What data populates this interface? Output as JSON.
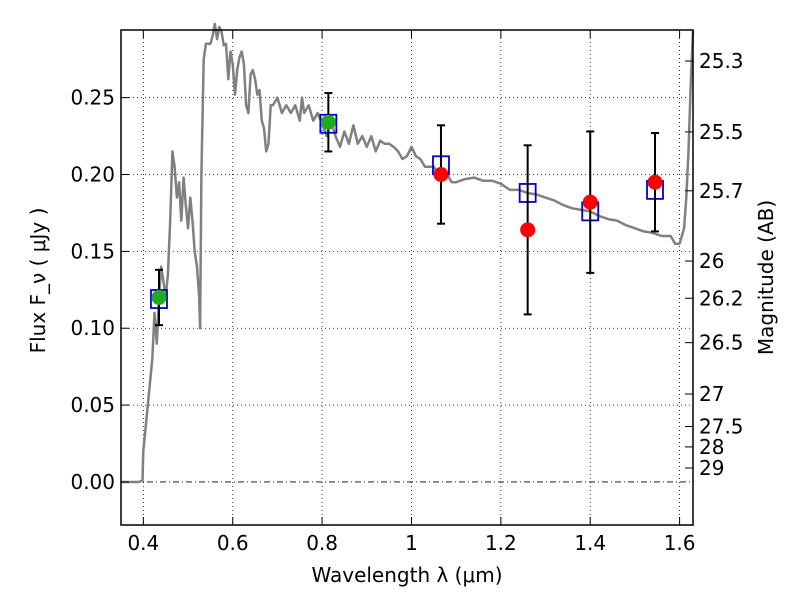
{
  "chart_data": {
    "type": "scatter",
    "xlabel": "Wavelength  λ (μm)",
    "ylabel": "Flux  F_ν  ( μJy )",
    "ylabel_right": "Magnitude (AB)",
    "xlim": [
      0.35,
      1.63
    ],
    "ylim": [
      -0.028,
      0.294
    ],
    "grid": true,
    "x_ticks": [
      0.4,
      0.6,
      0.8,
      1.0,
      1.2,
      1.4,
      1.6
    ],
    "x_tick_labels": [
      "0.4",
      "0.6",
      "0.8",
      "1",
      "1.2",
      "1.4",
      "1.6"
    ],
    "y_ticks": [
      0.0,
      0.05,
      0.1,
      0.15,
      0.2,
      0.25
    ],
    "y_tick_labels": [
      "0.00",
      "0.05",
      "0.10",
      "0.15",
      "0.20",
      "0.25"
    ],
    "right_ticks": [
      {
        "label": "25.3",
        "flux": 0.2738
      },
      {
        "label": "25.5",
        "flux": 0.2277
      },
      {
        "label": "25.7",
        "flux": 0.1894
      },
      {
        "label": "26",
        "flux": 0.1437
      },
      {
        "label": "26.2",
        "flux": 0.1195
      },
      {
        "label": "26.5",
        "flux": 0.0906
      },
      {
        "label": "27",
        "flux": 0.0572
      },
      {
        "label": "27.5",
        "flux": 0.0361
      },
      {
        "label": "28",
        "flux": 0.0228
      },
      {
        "label": "29",
        "flux": 0.0091
      }
    ],
    "series": [
      {
        "kind": "sed-line",
        "color": "#808080",
        "points": [
          [
            0.35,
            0.0
          ],
          [
            0.39,
            0.0
          ],
          [
            0.398,
            0.001
          ],
          [
            0.4,
            0.02
          ],
          [
            0.41,
            0.05
          ],
          [
            0.42,
            0.08
          ],
          [
            0.425,
            0.11
          ],
          [
            0.43,
            0.09
          ],
          [
            0.435,
            0.12
          ],
          [
            0.44,
            0.14
          ],
          [
            0.445,
            0.13
          ],
          [
            0.45,
            0.12
          ],
          [
            0.455,
            0.135
          ],
          [
            0.46,
            0.17
          ],
          [
            0.465,
            0.215
          ],
          [
            0.47,
            0.205
          ],
          [
            0.475,
            0.185
          ],
          [
            0.48,
            0.195
          ],
          [
            0.485,
            0.17
          ],
          [
            0.49,
            0.198
          ],
          [
            0.495,
            0.18
          ],
          [
            0.5,
            0.165
          ],
          [
            0.505,
            0.185
          ],
          [
            0.51,
            0.17
          ],
          [
            0.515,
            0.15
          ],
          [
            0.52,
            0.14
          ],
          [
            0.525,
            0.12
          ],
          [
            0.527,
            0.1
          ],
          [
            0.53,
            0.2
          ],
          [
            0.535,
            0.275
          ],
          [
            0.54,
            0.285
          ],
          [
            0.55,
            0.285
          ],
          [
            0.555,
            0.29
          ],
          [
            0.56,
            0.298
          ],
          [
            0.565,
            0.288
          ],
          [
            0.57,
            0.296
          ],
          [
            0.575,
            0.293
          ],
          [
            0.58,
            0.284
          ],
          [
            0.585,
            0.285
          ],
          [
            0.59,
            0.262
          ],
          [
            0.595,
            0.28
          ],
          [
            0.6,
            0.272
          ],
          [
            0.605,
            0.252
          ],
          [
            0.61,
            0.268
          ],
          [
            0.615,
            0.276
          ],
          [
            0.62,
            0.28
          ],
          [
            0.625,
            0.272
          ],
          [
            0.63,
            0.245
          ],
          [
            0.635,
            0.24
          ],
          [
            0.64,
            0.265
          ],
          [
            0.645,
            0.268
          ],
          [
            0.65,
            0.262
          ],
          [
            0.655,
            0.252
          ],
          [
            0.66,
            0.255
          ],
          [
            0.665,
            0.235
          ],
          [
            0.67,
            0.23
          ],
          [
            0.675,
            0.215
          ],
          [
            0.68,
            0.22
          ],
          [
            0.685,
            0.245
          ],
          [
            0.69,
            0.245
          ],
          [
            0.7,
            0.25
          ],
          [
            0.71,
            0.24
          ],
          [
            0.72,
            0.245
          ],
          [
            0.73,
            0.24
          ],
          [
            0.74,
            0.245
          ],
          [
            0.75,
            0.235
          ],
          [
            0.755,
            0.25
          ],
          [
            0.76,
            0.24
          ],
          [
            0.77,
            0.245
          ],
          [
            0.78,
            0.235
          ],
          [
            0.79,
            0.24
          ],
          [
            0.8,
            0.233
          ],
          [
            0.81,
            0.225
          ],
          [
            0.82,
            0.235
          ],
          [
            0.83,
            0.225
          ],
          [
            0.84,
            0.218
          ],
          [
            0.85,
            0.228
          ],
          [
            0.86,
            0.22
          ],
          [
            0.87,
            0.232
          ],
          [
            0.88,
            0.22
          ],
          [
            0.89,
            0.225
          ],
          [
            0.9,
            0.218
          ],
          [
            0.91,
            0.225
          ],
          [
            0.92,
            0.215
          ],
          [
            0.93,
            0.222
          ],
          [
            0.94,
            0.22
          ],
          [
            0.95,
            0.22
          ],
          [
            0.96,
            0.218
          ],
          [
            0.97,
            0.215
          ],
          [
            0.98,
            0.21
          ],
          [
            0.99,
            0.212
          ],
          [
            1.0,
            0.218
          ],
          [
            1.01,
            0.212
          ],
          [
            1.02,
            0.21
          ],
          [
            1.03,
            0.205
          ],
          [
            1.04,
            0.205
          ],
          [
            1.05,
            0.205
          ],
          [
            1.06,
            0.2
          ],
          [
            1.07,
            0.2
          ],
          [
            1.08,
            0.2
          ],
          [
            1.09,
            0.195
          ],
          [
            1.1,
            0.195
          ],
          [
            1.12,
            0.197
          ],
          [
            1.14,
            0.198
          ],
          [
            1.16,
            0.196
          ],
          [
            1.18,
            0.196
          ],
          [
            1.2,
            0.194
          ],
          [
            1.22,
            0.19
          ],
          [
            1.24,
            0.19
          ],
          [
            1.26,
            0.188
          ],
          [
            1.28,
            0.187
          ],
          [
            1.3,
            0.185
          ],
          [
            1.32,
            0.183
          ],
          [
            1.34,
            0.18
          ],
          [
            1.36,
            0.178
          ],
          [
            1.38,
            0.177
          ],
          [
            1.4,
            0.176
          ],
          [
            1.42,
            0.173
          ],
          [
            1.44,
            0.171
          ],
          [
            1.46,
            0.17
          ],
          [
            1.48,
            0.167
          ],
          [
            1.5,
            0.165
          ],
          [
            1.52,
            0.163
          ],
          [
            1.54,
            0.162
          ],
          [
            1.56,
            0.16
          ],
          [
            1.58,
            0.16
          ],
          [
            1.59,
            0.155
          ],
          [
            1.6,
            0.155
          ],
          [
            1.61,
            0.165
          ],
          [
            1.615,
            0.185
          ],
          [
            1.62,
            0.215
          ],
          [
            1.625,
            0.26
          ],
          [
            1.63,
            0.294
          ]
        ]
      },
      {
        "kind": "open-squares",
        "color": "#0000cc",
        "points": [
          {
            "x": 0.435,
            "y": 0.119
          },
          {
            "x": 0.814,
            "y": 0.233
          },
          {
            "x": 1.066,
            "y": 0.206
          },
          {
            "x": 1.26,
            "y": 0.188
          },
          {
            "x": 1.4,
            "y": 0.176
          },
          {
            "x": 1.545,
            "y": 0.19
          }
        ]
      },
      {
        "kind": "filled-circles",
        "color": "#22aa22",
        "points": [
          {
            "x": 0.435,
            "y": 0.12,
            "yerr": 0.018
          },
          {
            "x": 0.814,
            "y": 0.234,
            "yerr": 0.019
          }
        ]
      },
      {
        "kind": "filled-circles",
        "color": "#ff0000",
        "points": [
          {
            "x": 1.066,
            "y": 0.2,
            "yerr": 0.032
          },
          {
            "x": 1.26,
            "y": 0.164,
            "yerr": 0.055
          },
          {
            "x": 1.4,
            "y": 0.182,
            "yerr": 0.046
          },
          {
            "x": 1.545,
            "y": 0.195,
            "yerr": 0.032
          }
        ]
      }
    ]
  }
}
